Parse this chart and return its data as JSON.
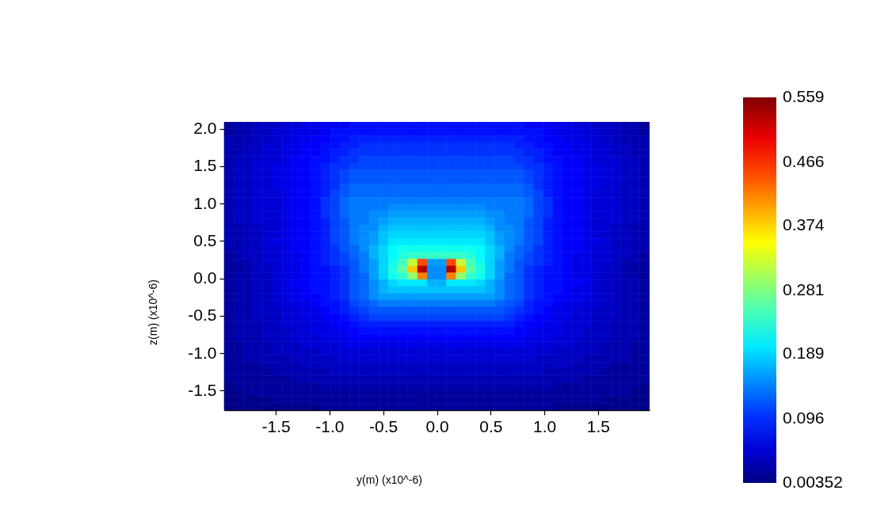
{
  "chart_data": {
    "type": "heatmap",
    "xlabel": "y(m) (x10^-6)",
    "ylabel": "z(m) (x10^-6)",
    "x": [
      -1.935,
      -1.845,
      -1.755,
      -1.665,
      -1.575,
      -1.485,
      -1.395,
      -1.305,
      -1.215,
      -1.125,
      -1.035,
      -0.945,
      -0.855,
      -0.765,
      -0.675,
      -0.585,
      -0.495,
      -0.405,
      -0.315,
      -0.225,
      -0.135,
      -0.045,
      0.045,
      0.135,
      0.225,
      0.315,
      0.405,
      0.495,
      0.585,
      0.675,
      0.765,
      0.855,
      0.945,
      1.035,
      1.125,
      1.215,
      1.305,
      1.395,
      1.485,
      1.575,
      1.665,
      1.755,
      1.845,
      1.935
    ],
    "y": [
      2.044,
      1.953,
      1.861,
      1.769,
      1.678,
      1.586,
      1.494,
      1.403,
      1.311,
      1.219,
      1.128,
      1.036,
      0.944,
      0.853,
      0.761,
      0.669,
      0.578,
      0.486,
      0.394,
      0.303,
      0.211,
      0.119,
      0.028,
      -0.064,
      -0.156,
      -0.247,
      -0.339,
      -0.431,
      -0.522,
      -0.614,
      -0.706,
      -0.797,
      -0.889,
      -0.981,
      -1.072,
      -1.164,
      -1.256,
      -1.347,
      -1.439,
      -1.531,
      -1.622,
      -1.714
    ],
    "cells": [
      [
        0.02,
        0.03,
        0.03,
        0.04,
        0.04,
        0.04,
        0.05,
        0.05,
        0.06,
        0.06,
        0.07,
        0.07,
        0.07,
        0.08,
        0.08,
        0.08,
        0.08,
        0.08,
        0.08,
        0.08,
        0.08,
        0.08,
        0.08,
        0.08,
        0.08,
        0.08,
        0.08,
        0.08,
        0.08,
        0.08,
        0.08,
        0.07,
        0.07,
        0.07,
        0.06,
        0.06,
        0.05,
        0.05,
        0.04,
        0.04,
        0.04,
        0.03,
        0.03,
        0.02
      ],
      [
        0.02,
        0.03,
        0.03,
        0.04,
        0.04,
        0.05,
        0.05,
        0.06,
        0.06,
        0.06,
        0.07,
        0.08,
        0.08,
        0.08,
        0.08,
        0.08,
        0.08,
        0.08,
        0.08,
        0.08,
        0.08,
        0.08,
        0.08,
        0.08,
        0.08,
        0.08,
        0.08,
        0.08,
        0.08,
        0.08,
        0.08,
        0.08,
        0.08,
        0.07,
        0.06,
        0.06,
        0.06,
        0.05,
        0.05,
        0.04,
        0.04,
        0.03,
        0.03,
        0.02
      ],
      [
        0.03,
        0.03,
        0.03,
        0.04,
        0.04,
        0.05,
        0.05,
        0.06,
        0.06,
        0.07,
        0.07,
        0.08,
        0.08,
        0.09,
        0.09,
        0.09,
        0.09,
        0.09,
        0.09,
        0.09,
        0.09,
        0.09,
        0.09,
        0.09,
        0.09,
        0.09,
        0.09,
        0.09,
        0.09,
        0.09,
        0.09,
        0.08,
        0.08,
        0.07,
        0.07,
        0.06,
        0.06,
        0.05,
        0.05,
        0.04,
        0.04,
        0.03,
        0.03,
        0.03
      ],
      [
        0.03,
        0.03,
        0.04,
        0.04,
        0.05,
        0.05,
        0.06,
        0.06,
        0.07,
        0.07,
        0.08,
        0.08,
        0.09,
        0.09,
        0.1,
        0.1,
        0.1,
        0.1,
        0.1,
        0.1,
        0.1,
        0.1,
        0.1,
        0.1,
        0.1,
        0.1,
        0.1,
        0.1,
        0.1,
        0.1,
        0.09,
        0.09,
        0.08,
        0.08,
        0.07,
        0.07,
        0.06,
        0.06,
        0.05,
        0.05,
        0.04,
        0.04,
        0.03,
        0.03
      ],
      [
        0.03,
        0.03,
        0.04,
        0.04,
        0.05,
        0.05,
        0.06,
        0.06,
        0.07,
        0.07,
        0.08,
        0.09,
        0.09,
        0.1,
        0.1,
        0.1,
        0.1,
        0.1,
        0.1,
        0.1,
        0.1,
        0.1,
        0.1,
        0.1,
        0.1,
        0.1,
        0.1,
        0.1,
        0.1,
        0.1,
        0.1,
        0.09,
        0.09,
        0.08,
        0.07,
        0.07,
        0.06,
        0.06,
        0.05,
        0.05,
        0.04,
        0.04,
        0.03,
        0.03
      ],
      [
        0.03,
        0.04,
        0.04,
        0.05,
        0.05,
        0.05,
        0.06,
        0.07,
        0.07,
        0.08,
        0.08,
        0.09,
        0.1,
        0.1,
        0.11,
        0.11,
        0.11,
        0.11,
        0.11,
        0.11,
        0.11,
        0.11,
        0.11,
        0.11,
        0.11,
        0.11,
        0.11,
        0.11,
        0.11,
        0.11,
        0.1,
        0.1,
        0.09,
        0.08,
        0.08,
        0.07,
        0.07,
        0.06,
        0.05,
        0.05,
        0.05,
        0.04,
        0.04,
        0.03
      ],
      [
        0.03,
        0.04,
        0.04,
        0.05,
        0.05,
        0.06,
        0.06,
        0.07,
        0.07,
        0.08,
        0.09,
        0.1,
        0.1,
        0.11,
        0.11,
        0.11,
        0.11,
        0.11,
        0.11,
        0.11,
        0.11,
        0.11,
        0.11,
        0.11,
        0.11,
        0.11,
        0.11,
        0.11,
        0.11,
        0.11,
        0.11,
        0.1,
        0.1,
        0.09,
        0.08,
        0.07,
        0.07,
        0.06,
        0.06,
        0.05,
        0.05,
        0.04,
        0.04,
        0.03
      ],
      [
        0.03,
        0.04,
        0.04,
        0.05,
        0.05,
        0.06,
        0.06,
        0.07,
        0.07,
        0.08,
        0.09,
        0.1,
        0.11,
        0.12,
        0.12,
        0.12,
        0.12,
        0.12,
        0.12,
        0.12,
        0.12,
        0.12,
        0.12,
        0.12,
        0.12,
        0.12,
        0.12,
        0.12,
        0.12,
        0.12,
        0.12,
        0.11,
        0.1,
        0.09,
        0.08,
        0.07,
        0.07,
        0.06,
        0.06,
        0.05,
        0.05,
        0.04,
        0.04,
        0.03
      ],
      [
        0.03,
        0.04,
        0.04,
        0.05,
        0.05,
        0.06,
        0.06,
        0.07,
        0.07,
        0.08,
        0.09,
        0.1,
        0.11,
        0.12,
        0.12,
        0.12,
        0.12,
        0.12,
        0.12,
        0.12,
        0.12,
        0.12,
        0.12,
        0.12,
        0.12,
        0.12,
        0.12,
        0.12,
        0.12,
        0.12,
        0.12,
        0.11,
        0.1,
        0.09,
        0.08,
        0.07,
        0.07,
        0.06,
        0.06,
        0.05,
        0.05,
        0.04,
        0.04,
        0.03
      ],
      [
        0.03,
        0.04,
        0.04,
        0.05,
        0.05,
        0.06,
        0.06,
        0.07,
        0.07,
        0.08,
        0.09,
        0.1,
        0.12,
        0.13,
        0.13,
        0.13,
        0.13,
        0.13,
        0.13,
        0.13,
        0.13,
        0.13,
        0.13,
        0.13,
        0.13,
        0.13,
        0.13,
        0.13,
        0.13,
        0.13,
        0.13,
        0.12,
        0.1,
        0.09,
        0.08,
        0.07,
        0.07,
        0.06,
        0.06,
        0.05,
        0.05,
        0.04,
        0.04,
        0.03
      ],
      [
        0.03,
        0.04,
        0.04,
        0.05,
        0.05,
        0.05,
        0.06,
        0.07,
        0.07,
        0.08,
        0.09,
        0.11,
        0.12,
        0.13,
        0.13,
        0.13,
        0.13,
        0.13,
        0.13,
        0.13,
        0.13,
        0.13,
        0.13,
        0.13,
        0.13,
        0.13,
        0.13,
        0.13,
        0.13,
        0.13,
        0.13,
        0.12,
        0.11,
        0.09,
        0.08,
        0.07,
        0.07,
        0.06,
        0.05,
        0.05,
        0.05,
        0.04,
        0.04,
        0.03
      ],
      [
        0.03,
        0.04,
        0.04,
        0.05,
        0.05,
        0.05,
        0.06,
        0.07,
        0.07,
        0.08,
        0.1,
        0.11,
        0.13,
        0.14,
        0.14,
        0.14,
        0.14,
        0.14,
        0.14,
        0.14,
        0.14,
        0.14,
        0.14,
        0.14,
        0.14,
        0.14,
        0.14,
        0.14,
        0.14,
        0.14,
        0.14,
        0.13,
        0.11,
        0.1,
        0.08,
        0.07,
        0.07,
        0.06,
        0.05,
        0.05,
        0.05,
        0.04,
        0.04,
        0.03
      ],
      [
        0.03,
        0.04,
        0.04,
        0.05,
        0.05,
        0.05,
        0.06,
        0.07,
        0.07,
        0.08,
        0.1,
        0.11,
        0.13,
        0.14,
        0.14,
        0.14,
        0.14,
        0.15,
        0.15,
        0.15,
        0.15,
        0.15,
        0.15,
        0.15,
        0.15,
        0.15,
        0.15,
        0.14,
        0.14,
        0.14,
        0.14,
        0.13,
        0.11,
        0.1,
        0.08,
        0.07,
        0.07,
        0.06,
        0.05,
        0.05,
        0.05,
        0.04,
        0.04,
        0.03
      ],
      [
        0.03,
        0.04,
        0.04,
        0.05,
        0.05,
        0.05,
        0.06,
        0.07,
        0.07,
        0.08,
        0.1,
        0.11,
        0.13,
        0.14,
        0.14,
        0.15,
        0.15,
        0.16,
        0.16,
        0.16,
        0.16,
        0.16,
        0.16,
        0.16,
        0.16,
        0.16,
        0.16,
        0.15,
        0.15,
        0.14,
        0.14,
        0.13,
        0.11,
        0.1,
        0.08,
        0.07,
        0.07,
        0.06,
        0.05,
        0.05,
        0.05,
        0.04,
        0.04,
        0.03
      ],
      [
        0.03,
        0.04,
        0.04,
        0.05,
        0.05,
        0.05,
        0.06,
        0.07,
        0.07,
        0.08,
        0.09,
        0.11,
        0.12,
        0.14,
        0.14,
        0.15,
        0.16,
        0.17,
        0.17,
        0.17,
        0.17,
        0.17,
        0.17,
        0.17,
        0.17,
        0.17,
        0.17,
        0.16,
        0.15,
        0.14,
        0.14,
        0.12,
        0.11,
        0.09,
        0.08,
        0.07,
        0.07,
        0.06,
        0.05,
        0.05,
        0.05,
        0.04,
        0.04,
        0.03
      ],
      [
        0.03,
        0.03,
        0.04,
        0.04,
        0.05,
        0.05,
        0.06,
        0.07,
        0.07,
        0.08,
        0.09,
        0.11,
        0.12,
        0.14,
        0.15,
        0.15,
        0.17,
        0.18,
        0.18,
        0.18,
        0.18,
        0.18,
        0.18,
        0.18,
        0.18,
        0.18,
        0.18,
        0.17,
        0.15,
        0.15,
        0.14,
        0.12,
        0.11,
        0.09,
        0.08,
        0.07,
        0.07,
        0.06,
        0.05,
        0.05,
        0.04,
        0.04,
        0.03,
        0.03
      ],
      [
        0.03,
        0.03,
        0.04,
        0.04,
        0.05,
        0.05,
        0.06,
        0.07,
        0.07,
        0.08,
        0.09,
        0.11,
        0.12,
        0.14,
        0.15,
        0.16,
        0.18,
        0.19,
        0.19,
        0.19,
        0.19,
        0.19,
        0.19,
        0.19,
        0.19,
        0.19,
        0.19,
        0.18,
        0.16,
        0.15,
        0.14,
        0.12,
        0.11,
        0.09,
        0.08,
        0.07,
        0.07,
        0.06,
        0.05,
        0.05,
        0.04,
        0.04,
        0.03,
        0.03
      ],
      [
        0.03,
        0.03,
        0.04,
        0.04,
        0.05,
        0.06,
        0.06,
        0.07,
        0.07,
        0.08,
        0.09,
        0.11,
        0.12,
        0.14,
        0.15,
        0.16,
        0.18,
        0.2,
        0.2,
        0.2,
        0.2,
        0.2,
        0.2,
        0.2,
        0.2,
        0.2,
        0.2,
        0.18,
        0.16,
        0.15,
        0.14,
        0.12,
        0.11,
        0.09,
        0.08,
        0.07,
        0.07,
        0.06,
        0.06,
        0.05,
        0.04,
        0.04,
        0.03,
        0.03
      ],
      [
        0.03,
        0.03,
        0.04,
        0.04,
        0.05,
        0.05,
        0.06,
        0.07,
        0.07,
        0.08,
        0.09,
        0.1,
        0.12,
        0.13,
        0.15,
        0.17,
        0.19,
        0.21,
        0.22,
        0.22,
        0.22,
        0.22,
        0.22,
        0.22,
        0.22,
        0.22,
        0.21,
        0.19,
        0.17,
        0.15,
        0.13,
        0.12,
        0.1,
        0.09,
        0.08,
        0.07,
        0.07,
        0.06,
        0.05,
        0.05,
        0.04,
        0.04,
        0.03,
        0.03
      ],
      [
        0.02,
        0.03,
        0.04,
        0.04,
        0.05,
        0.05,
        0.06,
        0.06,
        0.07,
        0.08,
        0.09,
        0.1,
        0.11,
        0.13,
        0.14,
        0.17,
        0.19,
        0.21,
        0.23,
        0.24,
        0.24,
        0.24,
        0.24,
        0.24,
        0.24,
        0.23,
        0.21,
        0.19,
        0.17,
        0.14,
        0.13,
        0.11,
        0.1,
        0.09,
        0.08,
        0.07,
        0.06,
        0.06,
        0.05,
        0.05,
        0.04,
        0.04,
        0.03,
        0.02
      ],
      [
        0.02,
        0.03,
        0.03,
        0.04,
        0.05,
        0.05,
        0.06,
        0.06,
        0.07,
        0.08,
        0.09,
        0.1,
        0.11,
        0.12,
        0.14,
        0.16,
        0.19,
        0.22,
        0.25,
        0.32,
        0.45,
        0.16,
        0.16,
        0.45,
        0.32,
        0.25,
        0.22,
        0.19,
        0.16,
        0.14,
        0.12,
        0.11,
        0.1,
        0.09,
        0.08,
        0.07,
        0.06,
        0.06,
        0.05,
        0.05,
        0.04,
        0.03,
        0.03,
        0.02
      ],
      [
        0.02,
        0.02,
        0.03,
        0.04,
        0.04,
        0.05,
        0.06,
        0.06,
        0.07,
        0.08,
        0.08,
        0.09,
        0.1,
        0.12,
        0.14,
        0.16,
        0.19,
        0.23,
        0.26,
        0.38,
        0.53,
        0.15,
        0.15,
        0.53,
        0.38,
        0.26,
        0.23,
        0.19,
        0.16,
        0.14,
        0.12,
        0.1,
        0.09,
        0.08,
        0.08,
        0.07,
        0.06,
        0.06,
        0.05,
        0.04,
        0.04,
        0.03,
        0.02,
        0.02
      ],
      [
        0.02,
        0.03,
        0.03,
        0.04,
        0.04,
        0.05,
        0.06,
        0.06,
        0.07,
        0.08,
        0.08,
        0.09,
        0.1,
        0.12,
        0.13,
        0.16,
        0.19,
        0.22,
        0.24,
        0.29,
        0.42,
        0.15,
        0.15,
        0.42,
        0.29,
        0.24,
        0.22,
        0.19,
        0.16,
        0.13,
        0.12,
        0.1,
        0.09,
        0.08,
        0.08,
        0.07,
        0.06,
        0.06,
        0.05,
        0.04,
        0.04,
        0.03,
        0.03,
        0.02
      ],
      [
        0.02,
        0.03,
        0.03,
        0.04,
        0.04,
        0.05,
        0.06,
        0.07,
        0.07,
        0.08,
        0.08,
        0.09,
        0.1,
        0.12,
        0.13,
        0.15,
        0.17,
        0.19,
        0.2,
        0.2,
        0.2,
        0.17,
        0.17,
        0.2,
        0.2,
        0.2,
        0.19,
        0.17,
        0.15,
        0.13,
        0.12,
        0.1,
        0.09,
        0.08,
        0.08,
        0.07,
        0.07,
        0.06,
        0.05,
        0.04,
        0.04,
        0.03,
        0.03,
        0.02
      ],
      [
        0.02,
        0.03,
        0.03,
        0.04,
        0.04,
        0.05,
        0.06,
        0.06,
        0.07,
        0.08,
        0.08,
        0.09,
        0.1,
        0.12,
        0.13,
        0.15,
        0.17,
        0.18,
        0.18,
        0.18,
        0.18,
        0.18,
        0.18,
        0.18,
        0.18,
        0.18,
        0.18,
        0.17,
        0.15,
        0.13,
        0.12,
        0.1,
        0.09,
        0.08,
        0.08,
        0.07,
        0.06,
        0.06,
        0.05,
        0.04,
        0.04,
        0.03,
        0.03,
        0.02
      ],
      [
        0.02,
        0.03,
        0.03,
        0.04,
        0.04,
        0.05,
        0.06,
        0.06,
        0.07,
        0.07,
        0.08,
        0.09,
        0.1,
        0.12,
        0.13,
        0.15,
        0.16,
        0.16,
        0.16,
        0.16,
        0.16,
        0.16,
        0.16,
        0.16,
        0.16,
        0.16,
        0.16,
        0.16,
        0.15,
        0.13,
        0.12,
        0.1,
        0.09,
        0.08,
        0.07,
        0.07,
        0.06,
        0.06,
        0.05,
        0.04,
        0.04,
        0.03,
        0.03,
        0.02
      ],
      [
        0.02,
        0.03,
        0.03,
        0.04,
        0.04,
        0.05,
        0.05,
        0.06,
        0.06,
        0.07,
        0.08,
        0.08,
        0.09,
        0.11,
        0.12,
        0.13,
        0.14,
        0.14,
        0.14,
        0.14,
        0.14,
        0.14,
        0.14,
        0.14,
        0.14,
        0.14,
        0.14,
        0.14,
        0.13,
        0.12,
        0.11,
        0.09,
        0.08,
        0.08,
        0.07,
        0.06,
        0.06,
        0.05,
        0.05,
        0.04,
        0.04,
        0.03,
        0.03,
        0.02
      ],
      [
        0.02,
        0.03,
        0.03,
        0.04,
        0.04,
        0.04,
        0.05,
        0.05,
        0.06,
        0.06,
        0.07,
        0.08,
        0.09,
        0.1,
        0.11,
        0.12,
        0.12,
        0.12,
        0.12,
        0.12,
        0.12,
        0.12,
        0.12,
        0.12,
        0.12,
        0.12,
        0.12,
        0.12,
        0.12,
        0.11,
        0.1,
        0.09,
        0.08,
        0.07,
        0.06,
        0.06,
        0.05,
        0.05,
        0.04,
        0.04,
        0.04,
        0.03,
        0.03,
        0.02
      ],
      [
        0.02,
        0.03,
        0.03,
        0.04,
        0.04,
        0.04,
        0.05,
        0.05,
        0.06,
        0.06,
        0.07,
        0.07,
        0.08,
        0.09,
        0.1,
        0.11,
        0.11,
        0.11,
        0.11,
        0.11,
        0.11,
        0.11,
        0.11,
        0.11,
        0.11,
        0.11,
        0.11,
        0.11,
        0.11,
        0.1,
        0.09,
        0.08,
        0.07,
        0.07,
        0.06,
        0.06,
        0.05,
        0.05,
        0.04,
        0.04,
        0.04,
        0.03,
        0.03,
        0.02
      ],
      [
        0.02,
        0.03,
        0.03,
        0.03,
        0.04,
        0.04,
        0.05,
        0.05,
        0.05,
        0.06,
        0.06,
        0.07,
        0.07,
        0.08,
        0.09,
        0.09,
        0.09,
        0.09,
        0.09,
        0.09,
        0.09,
        0.09,
        0.09,
        0.09,
        0.09,
        0.09,
        0.09,
        0.09,
        0.09,
        0.09,
        0.08,
        0.07,
        0.07,
        0.06,
        0.06,
        0.05,
        0.05,
        0.05,
        0.04,
        0.04,
        0.03,
        0.03,
        0.03,
        0.02
      ],
      [
        0.02,
        0.03,
        0.03,
        0.03,
        0.04,
        0.04,
        0.04,
        0.05,
        0.05,
        0.06,
        0.06,
        0.06,
        0.07,
        0.07,
        0.08,
        0.08,
        0.08,
        0.08,
        0.08,
        0.08,
        0.08,
        0.08,
        0.08,
        0.08,
        0.08,
        0.08,
        0.08,
        0.08,
        0.08,
        0.08,
        0.07,
        0.07,
        0.06,
        0.06,
        0.06,
        0.05,
        0.05,
        0.04,
        0.04,
        0.04,
        0.03,
        0.03,
        0.03,
        0.02
      ],
      [
        0.02,
        0.03,
        0.03,
        0.03,
        0.04,
        0.04,
        0.04,
        0.05,
        0.05,
        0.05,
        0.06,
        0.06,
        0.06,
        0.07,
        0.07,
        0.07,
        0.07,
        0.07,
        0.07,
        0.07,
        0.07,
        0.07,
        0.07,
        0.07,
        0.07,
        0.07,
        0.07,
        0.07,
        0.07,
        0.07,
        0.07,
        0.06,
        0.06,
        0.06,
        0.05,
        0.05,
        0.05,
        0.04,
        0.04,
        0.04,
        0.03,
        0.03,
        0.03,
        0.02
      ],
      [
        0.02,
        0.02,
        0.03,
        0.03,
        0.03,
        0.04,
        0.04,
        0.04,
        0.05,
        0.05,
        0.05,
        0.05,
        0.06,
        0.06,
        0.06,
        0.06,
        0.06,
        0.06,
        0.06,
        0.06,
        0.06,
        0.06,
        0.06,
        0.06,
        0.06,
        0.06,
        0.06,
        0.06,
        0.06,
        0.06,
        0.06,
        0.06,
        0.05,
        0.05,
        0.05,
        0.05,
        0.04,
        0.04,
        0.04,
        0.03,
        0.03,
        0.03,
        0.02,
        0.02
      ],
      [
        0.02,
        0.02,
        0.03,
        0.03,
        0.03,
        0.04,
        0.04,
        0.04,
        0.04,
        0.04,
        0.05,
        0.05,
        0.05,
        0.05,
        0.05,
        0.05,
        0.05,
        0.05,
        0.05,
        0.05,
        0.05,
        0.05,
        0.05,
        0.05,
        0.05,
        0.05,
        0.05,
        0.05,
        0.05,
        0.05,
        0.05,
        0.05,
        0.05,
        0.05,
        0.04,
        0.04,
        0.04,
        0.04,
        0.04,
        0.03,
        0.03,
        0.03,
        0.02,
        0.02
      ],
      [
        0.02,
        0.02,
        0.03,
        0.03,
        0.03,
        0.03,
        0.03,
        0.04,
        0.04,
        0.04,
        0.04,
        0.04,
        0.05,
        0.05,
        0.05,
        0.05,
        0.05,
        0.05,
        0.05,
        0.05,
        0.05,
        0.05,
        0.05,
        0.05,
        0.05,
        0.05,
        0.05,
        0.05,
        0.05,
        0.05,
        0.05,
        0.05,
        0.04,
        0.04,
        0.04,
        0.04,
        0.04,
        0.03,
        0.03,
        0.03,
        0.03,
        0.03,
        0.02,
        0.02
      ],
      [
        0.02,
        0.02,
        0.02,
        0.02,
        0.03,
        0.03,
        0.03,
        0.03,
        0.04,
        0.04,
        0.04,
        0.04,
        0.04,
        0.04,
        0.04,
        0.04,
        0.04,
        0.04,
        0.04,
        0.04,
        0.04,
        0.04,
        0.04,
        0.04,
        0.04,
        0.04,
        0.04,
        0.04,
        0.04,
        0.04,
        0.04,
        0.04,
        0.04,
        0.04,
        0.04,
        0.04,
        0.03,
        0.03,
        0.03,
        0.03,
        0.02,
        0.02,
        0.02,
        0.02
      ],
      [
        0.02,
        0.02,
        0.02,
        0.02,
        0.02,
        0.03,
        0.03,
        0.03,
        0.03,
        0.03,
        0.03,
        0.04,
        0.04,
        0.04,
        0.04,
        0.04,
        0.04,
        0.04,
        0.04,
        0.04,
        0.04,
        0.04,
        0.04,
        0.04,
        0.04,
        0.04,
        0.04,
        0.04,
        0.04,
        0.04,
        0.04,
        0.04,
        0.04,
        0.03,
        0.03,
        0.03,
        0.03,
        0.03,
        0.03,
        0.02,
        0.02,
        0.02,
        0.02,
        0.02
      ],
      [
        0.02,
        0.02,
        0.02,
        0.02,
        0.02,
        0.02,
        0.02,
        0.03,
        0.03,
        0.03,
        0.03,
        0.03,
        0.03,
        0.03,
        0.03,
        0.03,
        0.03,
        0.03,
        0.03,
        0.03,
        0.03,
        0.03,
        0.03,
        0.03,
        0.03,
        0.03,
        0.03,
        0.03,
        0.03,
        0.03,
        0.03,
        0.03,
        0.03,
        0.03,
        0.03,
        0.03,
        0.03,
        0.02,
        0.02,
        0.02,
        0.02,
        0.02,
        0.02,
        0.02
      ],
      [
        0.01,
        0.02,
        0.02,
        0.02,
        0.02,
        0.02,
        0.02,
        0.02,
        0.02,
        0.02,
        0.03,
        0.03,
        0.03,
        0.03,
        0.03,
        0.03,
        0.03,
        0.03,
        0.03,
        0.03,
        0.03,
        0.03,
        0.03,
        0.03,
        0.03,
        0.03,
        0.03,
        0.03,
        0.03,
        0.03,
        0.03,
        0.03,
        0.03,
        0.03,
        0.02,
        0.02,
        0.02,
        0.02,
        0.02,
        0.02,
        0.02,
        0.02,
        0.02,
        0.01
      ],
      [
        0.01,
        0.01,
        0.02,
        0.02,
        0.02,
        0.02,
        0.02,
        0.02,
        0.02,
        0.02,
        0.02,
        0.02,
        0.02,
        0.02,
        0.02,
        0.02,
        0.02,
        0.02,
        0.02,
        0.02,
        0.02,
        0.02,
        0.02,
        0.02,
        0.02,
        0.02,
        0.02,
        0.02,
        0.02,
        0.02,
        0.02,
        0.02,
        0.02,
        0.02,
        0.02,
        0.02,
        0.02,
        0.02,
        0.02,
        0.02,
        0.02,
        0.02,
        0.01,
        0.01
      ],
      [
        0.01,
        0.01,
        0.01,
        0.01,
        0.01,
        0.02,
        0.02,
        0.02,
        0.02,
        0.02,
        0.02,
        0.02,
        0.02,
        0.02,
        0.02,
        0.02,
        0.02,
        0.02,
        0.02,
        0.02,
        0.02,
        0.02,
        0.02,
        0.02,
        0.02,
        0.02,
        0.02,
        0.02,
        0.02,
        0.02,
        0.02,
        0.02,
        0.02,
        0.02,
        0.02,
        0.02,
        0.02,
        0.02,
        0.02,
        0.01,
        0.01,
        0.01,
        0.01,
        0.01
      ],
      [
        0.01,
        0.01,
        0.01,
        0.01,
        0.01,
        0.01,
        0.01,
        0.01,
        0.01,
        0.01,
        0.02,
        0.02,
        0.02,
        0.02,
        0.02,
        0.02,
        0.02,
        0.02,
        0.02,
        0.02,
        0.02,
        0.02,
        0.02,
        0.02,
        0.02,
        0.02,
        0.02,
        0.02,
        0.02,
        0.02,
        0.02,
        0.02,
        0.02,
        0.02,
        0.01,
        0.01,
        0.01,
        0.01,
        0.01,
        0.01,
        0.01,
        0.01,
        0.01,
        0.01
      ]
    ],
    "xlim": [
      -1.98,
      1.98
    ],
    "xticks": [
      -1.5,
      {
        "value": -1,
        "label": "-1.0"
      },
      -0.5,
      {
        "value": 0,
        "label": "0.0"
      },
      0.5,
      {
        "value": 1,
        "label": "1.0"
      },
      1.5
    ],
    "ylim": [
      -1.76,
      2.09
    ],
    "yticks": [
      -1.5,
      {
        "value": -1,
        "label": "-1.0"
      },
      -0.5,
      {
        "value": 0,
        "label": "0.0"
      },
      0.5,
      {
        "value": 1,
        "label": "1.0"
      },
      1.5,
      {
        "value": 2,
        "label": "2.0"
      }
    ],
    "clim": [
      0.00352,
      0.559
    ],
    "cticks": [
      0.00352,
      0.096,
      0.189,
      0.281,
      0.374,
      0.466,
      0.559
    ]
  }
}
